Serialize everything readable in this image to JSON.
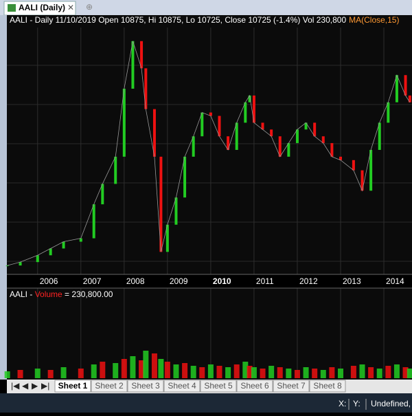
{
  "tabs": [
    "AALI (Daily)"
  ],
  "header": {
    "quote": "AALI - Daily 11/10/2019 Open 10875, Hi 10875, Lo 10725, Close 10725 (-1.4%) Vol 230,800",
    "indicator": "MA(Close,15)"
  },
  "volume_header": {
    "symbol": "AALI - ",
    "name": "Volume",
    "value": " = 230,800.00"
  },
  "chart_data": [
    {
      "type": "candlestick",
      "up_color": "#22cc22",
      "down_color": "#ee1111",
      "grid": true,
      "highlight_tick": 2010,
      "x": [
        2005.3,
        2005.6,
        2006.0,
        2006.3,
        2006.6,
        2007.0,
        2007.3,
        2007.5,
        2007.8,
        2008.0,
        2008.2,
        2008.4,
        2008.5,
        2008.7,
        2008.85,
        2009.0,
        2009.2,
        2009.4,
        2009.6,
        2009.8,
        2010.0,
        2010.2,
        2010.4,
        2010.6,
        2010.8,
        2010.9,
        2011.0,
        2011.2,
        2011.4,
        2011.6,
        2011.8,
        2012.0,
        2012.2,
        2012.4,
        2012.6,
        2012.8,
        2013.0,
        2013.3,
        2013.5,
        2013.7,
        2013.9,
        2014.1,
        2014.3,
        2014.5,
        2014.6
      ],
      "values": [
        950,
        1425,
        2375,
        3325,
        4275,
        4750,
        9500,
        12350,
        16150,
        25650,
        32300,
        28500,
        22800,
        16150,
        2850,
        6650,
        10450,
        16150,
        19000,
        22325,
        21850,
        19000,
        17100,
        20900,
        23750,
        24700,
        20900,
        19950,
        19000,
        16150,
        18050,
        19950,
        20900,
        19000,
        18050,
        16150,
        15675,
        14250,
        11400,
        17100,
        20900,
        23750,
        27550,
        24700,
        23750
      ],
      "xlim": [
        2005.29,
        2014.65
      ],
      "ylim": [
        0,
        34200
      ],
      "xticks": [
        2006,
        2007,
        2008,
        2009,
        2010,
        2011,
        2012,
        2013,
        2014
      ]
    },
    {
      "type": "bar",
      "up_color": "#22cc22",
      "down_color": "#ee1111",
      "x": [
        2005.3,
        2005.6,
        2006.0,
        2006.3,
        2006.6,
        2007.0,
        2007.3,
        2007.5,
        2007.8,
        2008.0,
        2008.2,
        2008.4,
        2008.5,
        2008.7,
        2008.85,
        2009.0,
        2009.2,
        2009.4,
        2009.6,
        2009.8,
        2010.0,
        2010.2,
        2010.4,
        2010.6,
        2010.8,
        2010.9,
        2011.0,
        2011.2,
        2011.4,
        2011.6,
        2011.8,
        2012.0,
        2012.2,
        2012.4,
        2012.6,
        2012.8,
        2013.0,
        2013.3,
        2013.5,
        2013.7,
        2013.9,
        2014.1,
        2014.3,
        2014.5,
        2014.6
      ],
      "values": [
        250000,
        300000,
        350000,
        300000,
        400000,
        350000,
        500000,
        600000,
        550000,
        700000,
        800000,
        650000,
        1000000,
        900000,
        700000,
        600000,
        500000,
        550000,
        450000,
        400000,
        500000,
        450000,
        400000,
        500000,
        600000,
        450000,
        400000,
        350000,
        450000,
        400000,
        350000,
        300000,
        400000,
        350000,
        300000,
        400000,
        350000,
        450000,
        500000,
        400000,
        350000,
        450000,
        500000,
        400000,
        350000
      ],
      "xlim": [
        2005.29,
        2014.65
      ],
      "ylim": [
        0,
        3000000
      ]
    }
  ],
  "sheets": [
    "Sheet 1",
    "Sheet 2",
    "Sheet 3",
    "Sheet 4",
    "Sheet 5",
    "Sheet 6",
    "Sheet 7",
    "Sheet 8"
  ],
  "status": {
    "x": "X:",
    "y": "Y:",
    "mode": "Undefined, C"
  }
}
